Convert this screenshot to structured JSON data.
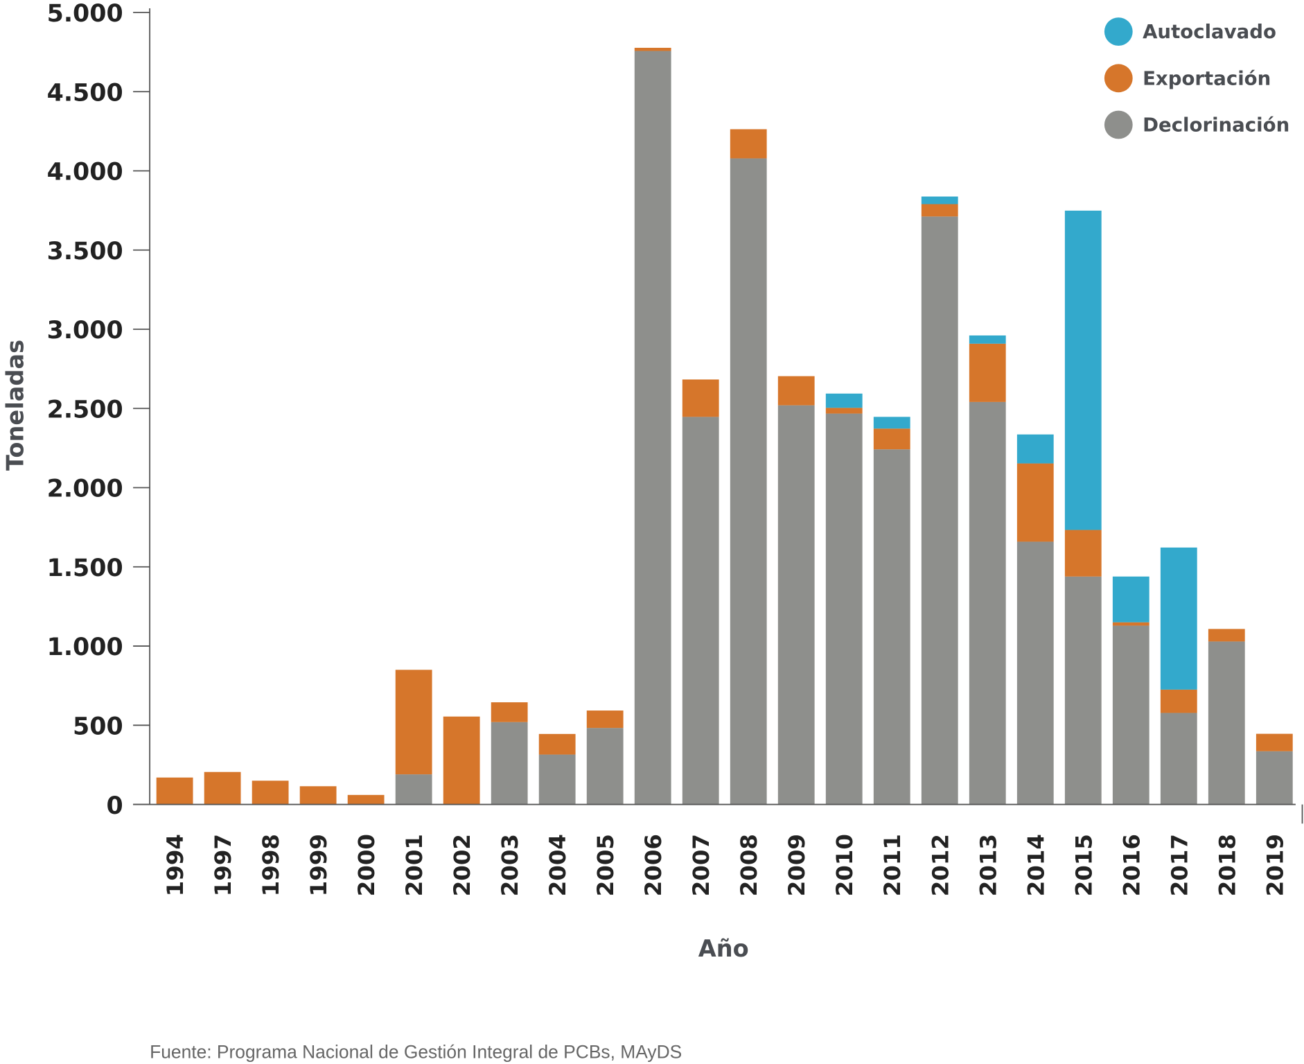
{
  "chart_data": {
    "type": "bar",
    "stacked": true,
    "title": "",
    "xlabel": "Año",
    "ylabel": "Toneladas",
    "ylim": [
      0,
      5000
    ],
    "yticks": [
      0,
      500,
      1000,
      1500,
      2000,
      2500,
      3000,
      3500,
      4000,
      4500,
      5000
    ],
    "ytick_labels": [
      "0",
      "500",
      "1.000",
      "1.500",
      "2.000",
      "2.500",
      "3.000",
      "3.500",
      "4.000",
      "4.500",
      "5.000"
    ],
    "grid": false,
    "legend_position": "top-right",
    "categories": [
      "1994",
      "1997",
      "1998",
      "1999",
      "2000",
      "2001",
      "2002",
      "2003",
      "2004",
      "2005",
      "2006",
      "2007",
      "2008",
      "2009",
      "2010",
      "2011",
      "2012",
      "2013",
      "2014",
      "2015",
      "2016",
      "2017",
      "2018",
      "2019"
    ],
    "series": [
      {
        "name": "Declorinación",
        "color": "#8e8f8c",
        "values": [
          0,
          0,
          0,
          0,
          0,
          190,
          0,
          520,
          315,
          483,
          4757,
          2447,
          4079,
          2520,
          2468,
          2242,
          3712,
          2541,
          1659,
          1439,
          1129,
          578,
          1029,
          336
        ]
      },
      {
        "name": "Exportación",
        "color": "#d6762b",
        "values": [
          170,
          205,
          150,
          115,
          60,
          660,
          555,
          125,
          130,
          110,
          20,
          236,
          184,
          184,
          36,
          131,
          78,
          368,
          494,
          294,
          21,
          147,
          79,
          110
        ]
      },
      {
        "name": "Autoclavado",
        "color": "#33a9cc",
        "values": [
          0,
          0,
          0,
          0,
          0,
          0,
          0,
          0,
          0,
          0,
          0,
          0,
          0,
          0,
          90,
          74,
          48,
          52,
          183,
          2016,
          289,
          897,
          0,
          0
        ]
      }
    ],
    "legend_order": [
      "Autoclavado",
      "Exportación",
      "Declorinación"
    ],
    "source": "Fuente: Programa Nacional de Gestión Integral de PCBs, MAyDS"
  }
}
